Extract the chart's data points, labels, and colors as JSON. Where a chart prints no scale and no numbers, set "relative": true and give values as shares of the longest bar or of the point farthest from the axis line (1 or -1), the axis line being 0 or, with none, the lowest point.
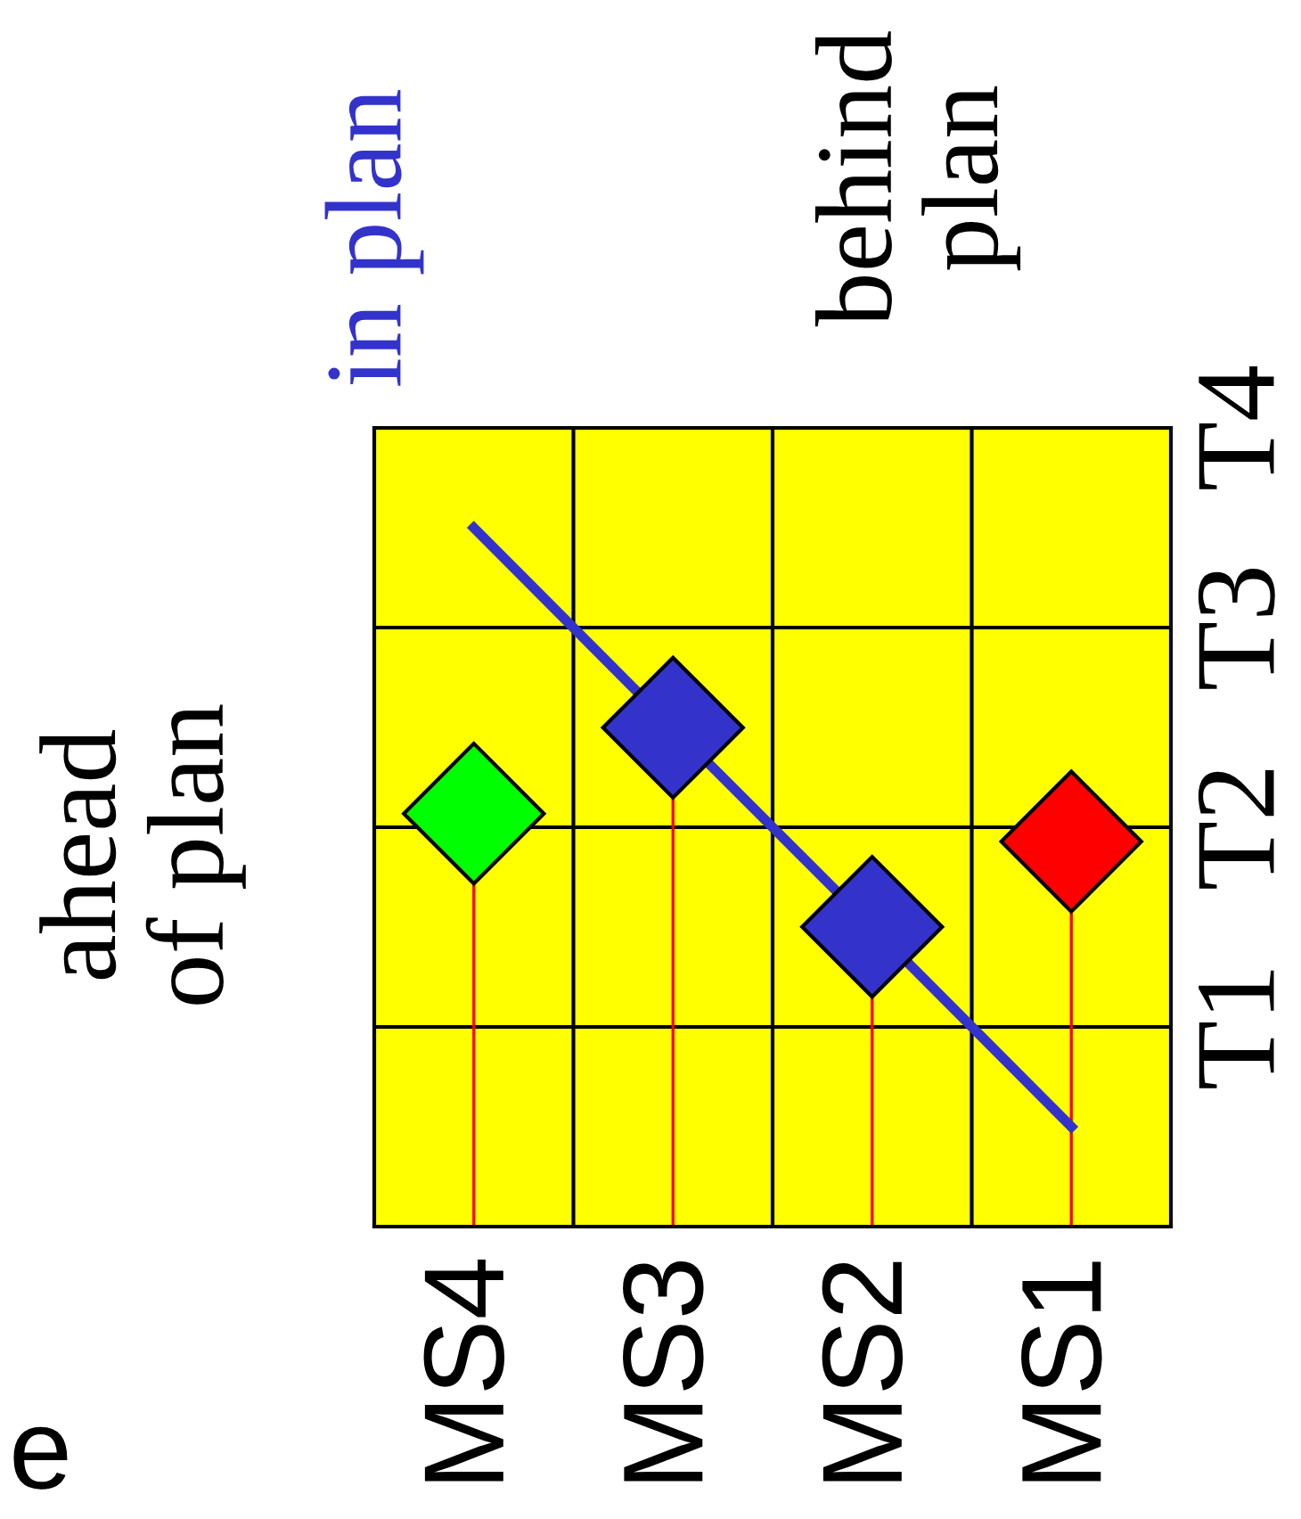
{
  "chart_data": {
    "type": "lollipop",
    "relative": true,
    "categories": [
      "MS4",
      "MS3",
      "MS2",
      "MS1"
    ],
    "values": [
      0.591,
      0.714,
      0.429,
      0.551
    ],
    "colors": [
      "#00ff00",
      "#3333cc",
      "#3333cc",
      "#ff0000"
    ],
    "marker": "diamond",
    "grid": true,
    "series": [
      {
        "type": "line",
        "name": "in plan",
        "color": "#3333cc",
        "marker": "none",
        "values": [
          1,
          0.714,
          0.429,
          0.143
        ]
      }
    ],
    "annotations": [
      "ahead\nof plan",
      "behind\nplan",
      "e",
      "T1",
      "T2",
      "T3",
      "T4"
    ]
  }
}
